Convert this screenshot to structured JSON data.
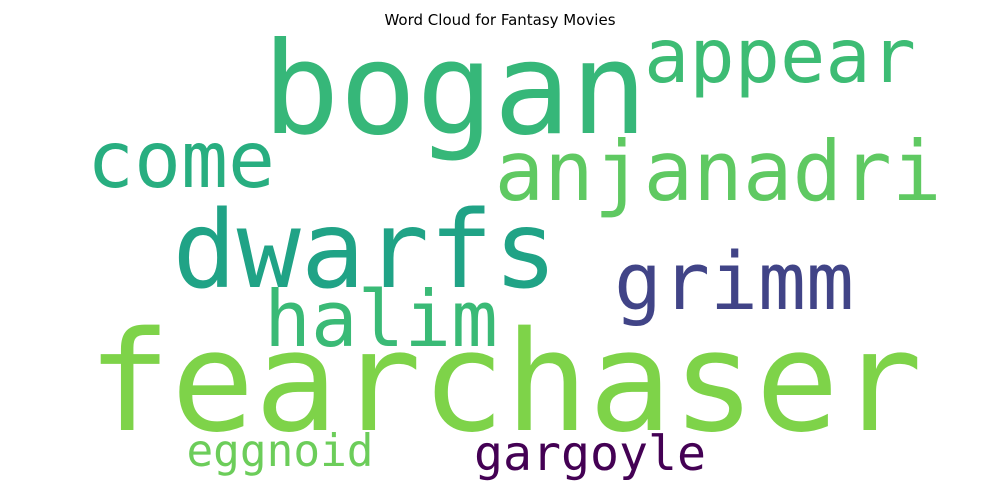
{
  "chart_data": {
    "type": "wordcloud",
    "title": "Word Cloud for Fantasy Movies",
    "words": [
      {
        "text": "fearchaser",
        "weight": 1.0,
        "color": "#7ed349"
      },
      {
        "text": "bogan",
        "weight": 0.82,
        "color": "#36b779"
      },
      {
        "text": "dwarfs",
        "weight": 0.72,
        "color": "#20a386"
      },
      {
        "text": "anjanadri",
        "weight": 0.5,
        "color": "#5fc962"
      },
      {
        "text": "grimm",
        "weight": 0.5,
        "color": "#414487"
      },
      {
        "text": "halim",
        "weight": 0.47,
        "color": "#3aba76"
      },
      {
        "text": "come",
        "weight": 0.47,
        "color": "#28ae80"
      },
      {
        "text": "appear",
        "weight": 0.47,
        "color": "#3dbc74"
      },
      {
        "text": "gargoyle",
        "weight": 0.3,
        "color": "#440154"
      },
      {
        "text": "eggnoid",
        "weight": 0.27,
        "color": "#6ccd5a"
      }
    ]
  }
}
